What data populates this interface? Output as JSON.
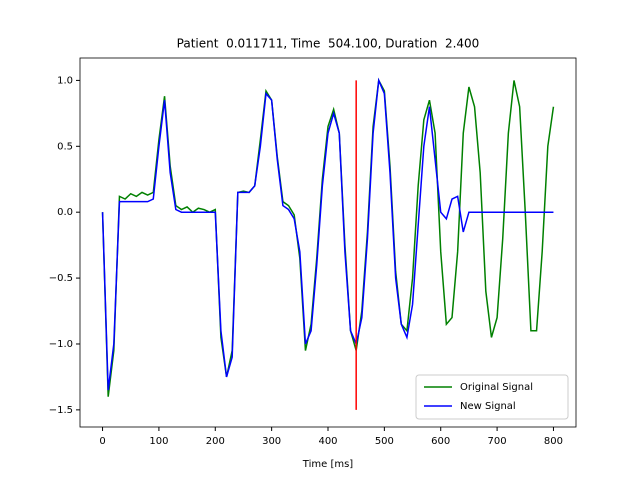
{
  "chart_data": {
    "type": "line",
    "title": "Patient  0.011711, Time  504.100, Duration  2.400",
    "x_label": "Time [ms]",
    "x": [
      0,
      10,
      20,
      30,
      40,
      50,
      60,
      70,
      80,
      90,
      100,
      110,
      120,
      130,
      140,
      150,
      160,
      170,
      180,
      190,
      200,
      210,
      220,
      230,
      240,
      250,
      260,
      270,
      280,
      290,
      300,
      310,
      320,
      330,
      340,
      350,
      360,
      370,
      380,
      390,
      400,
      410,
      420,
      430,
      440,
      450,
      460,
      470,
      480,
      490,
      500,
      510,
      520,
      530,
      540,
      550,
      560,
      570,
      580,
      590,
      600,
      610,
      620,
      630,
      640,
      650,
      660,
      670,
      680,
      690,
      700,
      710,
      720,
      730,
      740,
      750,
      760,
      770,
      780,
      790,
      800
    ],
    "series": [
      {
        "name": "Original Signal",
        "color": "#008000",
        "values": [
          0,
          -1.4,
          -1.05,
          0.12,
          0.1,
          0.14,
          0.12,
          0.15,
          0.13,
          0.15,
          0.55,
          0.88,
          0.35,
          0.05,
          0.02,
          0.04,
          0.0,
          0.03,
          0.02,
          0.0,
          0.02,
          -0.95,
          -1.25,
          -1.05,
          0.15,
          0.16,
          0.15,
          0.2,
          0.55,
          0.92,
          0.85,
          0.42,
          0.08,
          0.05,
          -0.02,
          -0.35,
          -1.05,
          -0.85,
          -0.35,
          0.25,
          0.65,
          0.78,
          0.6,
          -0.25,
          -0.9,
          -1.05,
          -0.75,
          -0.15,
          0.65,
          1.0,
          0.92,
          0.35,
          -0.45,
          -0.85,
          -0.9,
          -0.5,
          0.2,
          0.7,
          0.85,
          0.6,
          -0.3,
          -0.85,
          -0.8,
          -0.3,
          0.6,
          0.95,
          0.8,
          0.3,
          -0.6,
          -0.95,
          -0.8,
          -0.2,
          0.6,
          1.0,
          0.8,
          0.0,
          -0.9,
          -0.9,
          -0.3,
          0.5,
          0.8
        ]
      },
      {
        "name": "New Signal",
        "color": "#0000ff",
        "values": [
          0,
          -1.35,
          -1.0,
          0.08,
          0.08,
          0.08,
          0.08,
          0.08,
          0.08,
          0.1,
          0.5,
          0.85,
          0.3,
          0.02,
          0.0,
          0.0,
          0.0,
          0.0,
          0.0,
          0.0,
          0.0,
          -0.9,
          -1.25,
          -1.1,
          0.15,
          0.15,
          0.15,
          0.2,
          0.5,
          0.9,
          0.85,
          0.4,
          0.05,
          0.02,
          -0.05,
          -0.3,
          -1.0,
          -0.9,
          -0.4,
          0.2,
          0.6,
          0.75,
          0.6,
          -0.3,
          -0.9,
          -1.0,
          -0.8,
          -0.2,
          0.6,
          1.0,
          0.9,
          0.3,
          -0.5,
          -0.85,
          -0.95,
          -0.7,
          -0.1,
          0.5,
          0.8,
          0.4,
          0.0,
          -0.05,
          0.1,
          0.12,
          -0.15,
          0.0,
          0.0,
          0.0,
          0.0,
          0.0,
          0.0,
          0.0,
          0.0,
          0.0,
          0.0,
          0.0,
          0.0,
          0.0,
          0.0,
          0.0,
          0.0
        ]
      }
    ],
    "vline": {
      "x": 450,
      "ymin": -1.5,
      "ymax": 1.0,
      "color": "#ff0000"
    },
    "xlim": [
      -40,
      840
    ],
    "ylim": [
      -1.63,
      1.17
    ],
    "xticks": [
      0,
      100,
      200,
      300,
      400,
      500,
      600,
      700,
      800
    ],
    "yticks": [
      {
        "value": 1,
        "label": "1.0"
      },
      0.5,
      {
        "value": 0,
        "label": "0.0"
      },
      {
        "value": -0.5,
        "label": "−0.5"
      },
      {
        "value": -1,
        "label": "−1.0"
      },
      {
        "value": -1.5,
        "label": "−1.5"
      }
    ],
    "legend": "lower right"
  }
}
